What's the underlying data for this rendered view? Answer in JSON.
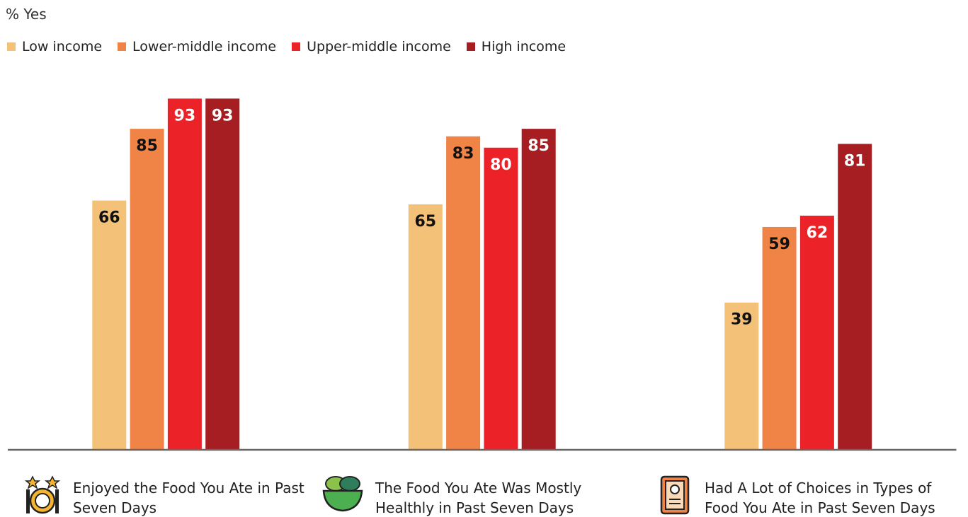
{
  "chart_data": {
    "type": "bar",
    "y_label": "% Yes",
    "categories": [
      "Enjoyed the Food You Ate in Past Seven Days",
      "The Food You Ate Was Mostly Healthly in Past Seven Days",
      "Had A Lot of Choices in Types of Food You Ate in Past Seven Days"
    ],
    "series": [
      {
        "name": "Low income",
        "color": "#f3c177",
        "label_color": "#111111",
        "values": [
          66,
          65,
          39
        ]
      },
      {
        "name": "Lower-middle income",
        "color": "#f08346",
        "label_color": "#111111",
        "values": [
          85,
          83,
          59
        ]
      },
      {
        "name": "Upper-middle income",
        "color": "#ec2229",
        "label_color": "#ffffff",
        "values": [
          93,
          80,
          62
        ]
      },
      {
        "name": "High income",
        "color": "#a61e22",
        "label_color": "#ffffff",
        "values": [
          93,
          85,
          81
        ]
      }
    ],
    "ylim": [
      0,
      100
    ]
  }
}
